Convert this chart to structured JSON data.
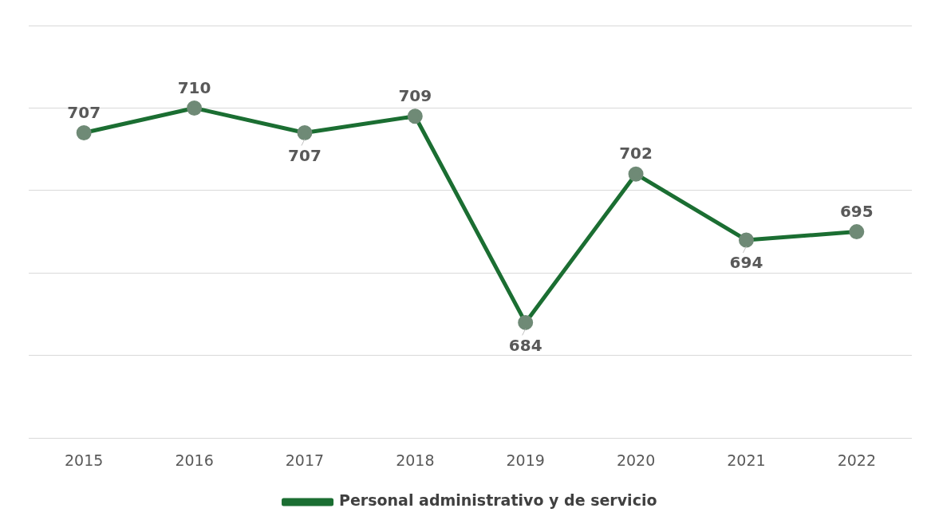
{
  "chart_data": {
    "type": "line",
    "categories": [
      "2015",
      "2016",
      "2017",
      "2018",
      "2019",
      "2020",
      "2021",
      "2022"
    ],
    "series": [
      {
        "name": "Personal administrativo y de servicio",
        "color": "#1b6e32",
        "values": [
          707,
          710,
          707,
          709,
          684,
          702,
          694,
          695
        ]
      }
    ],
    "ylim": [
      670,
      720
    ],
    "yticks": [
      {
        "value": 670,
        "label": null
      },
      {
        "value": 680,
        "label": null
      },
      {
        "value": 690,
        "label": null
      },
      {
        "value": 700,
        "label": null
      },
      {
        "value": 710,
        "label": null
      },
      {
        "value": 720,
        "label": null
      }
    ],
    "tick_labels": "x",
    "grid": "y",
    "legend": "bottom",
    "marker": "circle",
    "data_labels": true
  }
}
